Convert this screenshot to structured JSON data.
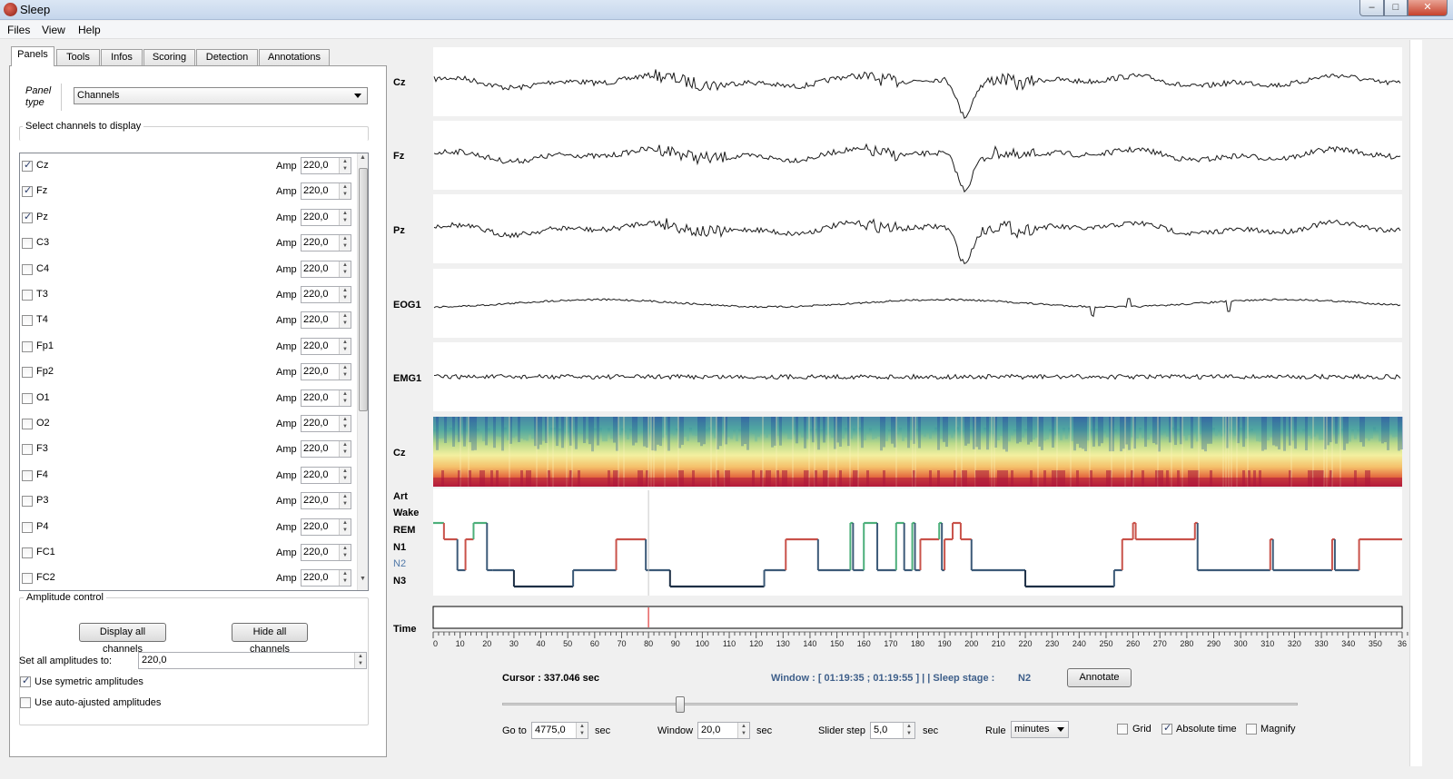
{
  "window": {
    "title": "Sleep",
    "controls": {
      "minimize": "–",
      "maximize": "□",
      "close": "✕"
    }
  },
  "menu": [
    "Files",
    "View",
    "Help"
  ],
  "tabs": [
    "Panels",
    "Tools",
    "Infos",
    "Scoring",
    "Detection",
    "Annotations"
  ],
  "panel": {
    "type_label": "Panel type",
    "type_value": "Channels",
    "select_title": "Select channels to display",
    "amp_label": "Amp",
    "channels": [
      {
        "name": "Cz",
        "checked": true,
        "amp": "220,0"
      },
      {
        "name": "Fz",
        "checked": true,
        "amp": "220,0"
      },
      {
        "name": "Pz",
        "checked": true,
        "amp": "220,0"
      },
      {
        "name": "C3",
        "checked": false,
        "amp": "220,0"
      },
      {
        "name": "C4",
        "checked": false,
        "amp": "220,0"
      },
      {
        "name": "T3",
        "checked": false,
        "amp": "220,0"
      },
      {
        "name": "T4",
        "checked": false,
        "amp": "220,0"
      },
      {
        "name": "Fp1",
        "checked": false,
        "amp": "220,0"
      },
      {
        "name": "Fp2",
        "checked": false,
        "amp": "220,0"
      },
      {
        "name": "O1",
        "checked": false,
        "amp": "220,0"
      },
      {
        "name": "O2",
        "checked": false,
        "amp": "220,0"
      },
      {
        "name": "F3",
        "checked": false,
        "amp": "220,0"
      },
      {
        "name": "F4",
        "checked": false,
        "amp": "220,0"
      },
      {
        "name": "P3",
        "checked": false,
        "amp": "220,0"
      },
      {
        "name": "P4",
        "checked": false,
        "amp": "220,0"
      },
      {
        "name": "FC1",
        "checked": false,
        "amp": "220,0"
      },
      {
        "name": "FC2",
        "checked": false,
        "amp": "220,0"
      }
    ],
    "amplitude_title": "Amplitude control",
    "display_all": "Display all channels",
    "hide_all": "Hide all channels",
    "set_all_label": "Set all amplitudes to:",
    "set_all_value": "220,0",
    "use_symmetric": "Use symetric amplitudes",
    "use_symmetric_checked": true,
    "use_auto": "Use auto-ajusted amplitudes",
    "use_auto_checked": false
  },
  "signals": {
    "channels": [
      "Cz",
      "Fz",
      "Pz",
      "EOG1",
      "EMG1"
    ],
    "spectrogram_label": "Cz",
    "hypnogram_stages": [
      "Art",
      "Wake",
      "REM",
      "N1",
      "N2",
      "N3"
    ],
    "highlight_stage": "N2",
    "time_label": "Time",
    "time_ticks": [
      "0",
      "10",
      "20",
      "30",
      "40",
      "50",
      "60",
      "70",
      "80",
      "90",
      "100",
      "110",
      "120",
      "130",
      "140",
      "150",
      "160",
      "170",
      "180",
      "190",
      "200",
      "210",
      "220",
      "230",
      "240",
      "250",
      "260",
      "270",
      "280",
      "290",
      "300",
      "310",
      "320",
      "330",
      "340",
      "350",
      "36"
    ],
    "cursor_position_min": 80
  },
  "hypnogram": [
    [
      0,
      "Wake"
    ],
    [
      4,
      "N1"
    ],
    [
      9,
      "N2"
    ],
    [
      12,
      "N1"
    ],
    [
      15,
      "Wake"
    ],
    [
      20,
      "N2"
    ],
    [
      22,
      "N2"
    ],
    [
      30,
      "N3"
    ],
    [
      52,
      "N2"
    ],
    [
      68,
      "N1"
    ],
    [
      79,
      "N2"
    ],
    [
      88,
      "N3"
    ],
    [
      123,
      "N2"
    ],
    [
      131,
      "N1"
    ],
    [
      143,
      "N2"
    ],
    [
      155,
      "Wake"
    ],
    [
      156,
      "N2"
    ],
    [
      160,
      "Wake"
    ],
    [
      165,
      "N2"
    ],
    [
      172,
      "Wake"
    ],
    [
      175,
      "N2"
    ],
    [
      178,
      "Wake"
    ],
    [
      179,
      "N2"
    ],
    [
      181,
      "N1"
    ],
    [
      188,
      "Wake"
    ],
    [
      189,
      "N2"
    ],
    [
      190,
      "N1"
    ],
    [
      193,
      "REM"
    ],
    [
      196,
      "N1"
    ],
    [
      200,
      "N2"
    ],
    [
      220,
      "N3"
    ],
    [
      253,
      "N2"
    ],
    [
      256,
      "N1"
    ],
    [
      260,
      "REM"
    ],
    [
      261,
      "N1"
    ],
    [
      283,
      "REM"
    ],
    [
      284,
      "N2"
    ],
    [
      311,
      "N1"
    ],
    [
      312,
      "N2"
    ],
    [
      334,
      "N1"
    ],
    [
      335,
      "N2"
    ],
    [
      344,
      "N1"
    ],
    [
      360,
      "N1"
    ]
  ],
  "status": {
    "cursor_label": "Cursor :",
    "cursor_value": "337.046 sec",
    "window_text": "Window : [ 01:19:35 ; 01:19:55 ] | | Sleep stage :",
    "sleep_stage": "N2",
    "annotate": "Annotate"
  },
  "controls": {
    "goto_label": "Go to",
    "goto_value": "4775,0",
    "goto_unit": "sec",
    "window_label": "Window",
    "window_value": "20,0",
    "window_unit": "sec",
    "step_label": "Slider step",
    "step_value": "5,0",
    "step_unit": "sec",
    "rule_label": "Rule",
    "rule_value": "minutes",
    "grid_label": "Grid",
    "grid_checked": false,
    "abs_label": "Absolute time",
    "abs_checked": true,
    "magnify_label": "Magnify",
    "magnify_checked": false
  },
  "colors": {
    "wake": "#4caf7a",
    "n1": "#c9524a",
    "n2": "#3c5a78",
    "n3": "#1d2f45",
    "cursor": "#e03a3a"
  }
}
